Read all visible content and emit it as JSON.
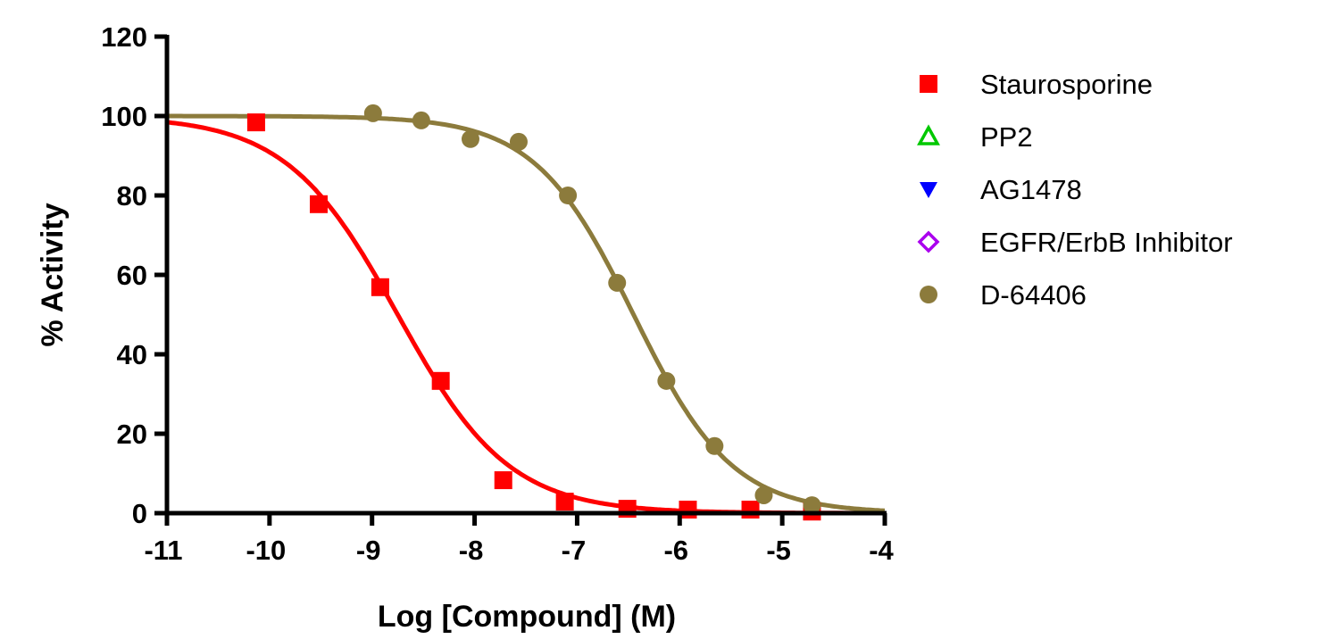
{
  "chart_data": {
    "type": "scatter",
    "title": "",
    "xlabel": "Log [Compound] (M)",
    "ylabel": "% Activity",
    "xlim": [
      -11,
      -4
    ],
    "ylim": [
      0,
      120
    ],
    "xticks": [
      -11,
      -10,
      -9,
      -8,
      -7,
      -6,
      -5,
      -4
    ],
    "yticks": [
      0,
      20,
      40,
      60,
      80,
      100,
      120
    ],
    "xtick_labels": [
      "-11",
      "-10",
      "-9",
      "-8",
      "-7",
      "-6",
      "-5",
      "-4"
    ],
    "ytick_labels": [
      "0",
      "20",
      "40",
      "60",
      "80",
      "100",
      "120"
    ],
    "grid": false,
    "legend_position": "right",
    "series": [
      {
        "name": "Staurosporine",
        "color": "#ff0000",
        "marker": "square-filled",
        "x": [
          -10.13,
          -9.52,
          -8.92,
          -8.33,
          -7.72,
          -7.12,
          -6.51,
          -5.92,
          -5.31,
          -4.71
        ],
        "y": [
          98.4,
          77.8,
          56.9,
          33.3,
          8.3,
          2.9,
          1.1,
          0.9,
          0.9,
          0.4
        ],
        "fit": {
          "model": "sigmoidal dose-response",
          "top": 100,
          "bottom": 0,
          "logIC50": -8.75,
          "hill": 0.8
        }
      },
      {
        "name": "PP2",
        "color": "#00c800",
        "marker": "triangle-up-open",
        "x": [],
        "y": []
      },
      {
        "name": "AG1478",
        "color": "#0000ff",
        "marker": "triangle-down-filled",
        "x": [],
        "y": []
      },
      {
        "name": "EGFR/ErbB Inhibitor",
        "color": "#aa00ee",
        "marker": "diamond-open",
        "x": [],
        "y": []
      },
      {
        "name": "D-64406",
        "color": "#8c7b3c",
        "marker": "circle-filled",
        "x": [
          -8.99,
          -8.52,
          -8.04,
          -7.57,
          -7.09,
          -6.61,
          -6.13,
          -5.66,
          -5.18,
          -4.71
        ],
        "y": [
          100.7,
          98.9,
          94.2,
          93.5,
          80.0,
          58.0,
          33.3,
          16.9,
          4.5,
          2.0
        ],
        "fit": {
          "model": "sigmoidal dose-response",
          "top": 100,
          "bottom": 0,
          "logIC50": -6.45,
          "hill": 0.9
        }
      }
    ]
  }
}
